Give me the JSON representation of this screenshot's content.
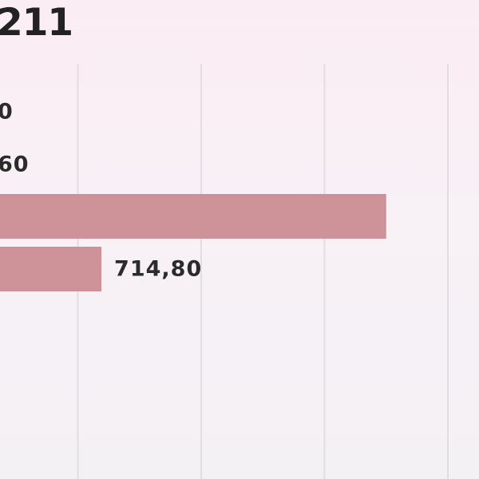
{
  "chart_data": {
    "type": "bar",
    "orientation": "horizontal",
    "title": "211",
    "bar_color": "#cd9399",
    "grid": true,
    "xlim": [
      0,
      1600
    ],
    "rows": [
      {
        "value": null,
        "label": "0",
        "bar_visible": false
      },
      {
        "value": null,
        "label": "60",
        "bar_visible": false
      },
      {
        "value": 2100,
        "label": "",
        "bar_visible": true
      },
      {
        "value": 714.8,
        "label": "714,80",
        "bar_visible": true
      }
    ]
  }
}
